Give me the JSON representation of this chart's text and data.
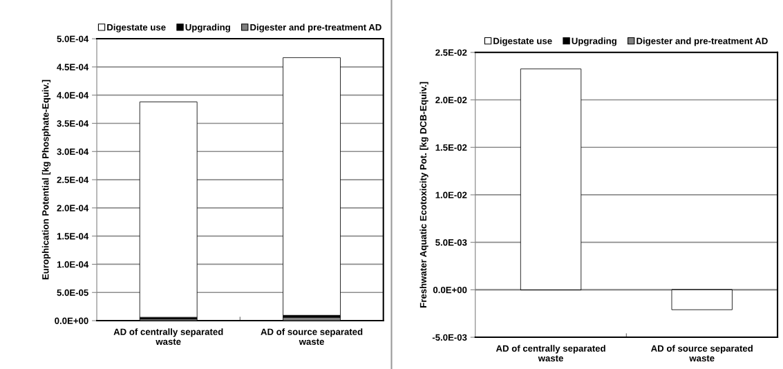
{
  "chart_data": [
    {
      "type": "bar",
      "stacked": true,
      "ylabel": "Europhication Potential [kg Phosphate-Equiv.]",
      "categories": [
        "AD of centrally separated\nwaste",
        "AD of source separated\nwaste"
      ],
      "series": [
        {
          "name": "Digester and pre-treatment AD",
          "color": "#808080",
          "values": [
            3e-06,
            6e-06
          ]
        },
        {
          "name": "Upgrading",
          "color": "#000000",
          "values": [
            3e-06,
            3.5e-06
          ]
        },
        {
          "name": "Digestate use",
          "color": "#ffffff",
          "values": [
            0.000382,
            0.000457
          ]
        }
      ],
      "ylim": [
        0,
        0.0005
      ],
      "yticks": [
        {
          "value": 0,
          "label": "0.0E+00"
        },
        {
          "value": 5e-05,
          "label": "5.0E-05"
        },
        {
          "value": 0.0001,
          "label": "1.0E-04"
        },
        {
          "value": 0.00015,
          "label": "1.5E-04"
        },
        {
          "value": 0.0002,
          "label": "2.0E-04"
        },
        {
          "value": 0.00025,
          "label": "2.5E-04"
        },
        {
          "value": 0.0003,
          "label": "3.0E-04"
        },
        {
          "value": 0.00035,
          "label": "3.5E-04"
        },
        {
          "value": 0.0004,
          "label": "4.0E-04"
        },
        {
          "value": 0.00045,
          "label": "4.5E-04"
        },
        {
          "value": 0.0005,
          "label": "5.0E-04"
        }
      ],
      "grid": "y",
      "legend": "top"
    },
    {
      "type": "bar",
      "stacked": true,
      "ylabel": "Freshwater Aquatic Ecotoxicity Pot. [kg DCB-Equiv.]",
      "categories": [
        "AD of centrally separated\nwaste",
        "AD of source separated\nwaste"
      ],
      "series": [
        {
          "name": "Digester and pre-treatment AD",
          "color": "#808080",
          "values": [
            0,
            0
          ]
        },
        {
          "name": "Upgrading",
          "color": "#000000",
          "values": [
            0,
            0
          ]
        },
        {
          "name": "Digestate use",
          "color": "#ffffff",
          "values": [
            0.02326,
            -0.0021
          ]
        }
      ],
      "ylim": [
        -0.005,
        0.025
      ],
      "yticks": [
        {
          "value": -0.005,
          "label": "-5.0E-03"
        },
        {
          "value": 0,
          "label": "0.0E+00"
        },
        {
          "value": 0.005,
          "label": "5.0E-03"
        },
        {
          "value": 0.01,
          "label": "1.0E-02"
        },
        {
          "value": 0.015,
          "label": "1.5E-02"
        },
        {
          "value": 0.02,
          "label": "2.0E-02"
        },
        {
          "value": 0.025,
          "label": "2.5E-02"
        }
      ],
      "grid": "y",
      "legend": "top"
    }
  ]
}
